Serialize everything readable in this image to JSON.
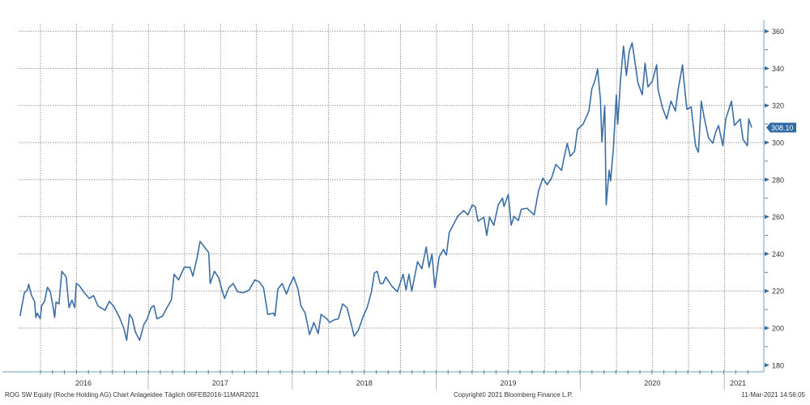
{
  "colors": {
    "line": "#3a6ea5",
    "grid": "#9a9a9a",
    "last_badge": "#2f6aa3",
    "axis": "#6aa0c8"
  },
  "chart_data": {
    "type": "line",
    "title": "",
    "xlabel": "",
    "ylabel": "",
    "ylim": [
      180,
      360
    ],
    "yticks": [
      180,
      200,
      220,
      240,
      260,
      280,
      300,
      320,
      340,
      360
    ],
    "xlim": [
      2016.1,
      2021.19
    ],
    "x_tick_labels": [
      "2016",
      "2017",
      "2018",
      "2019",
      "2020",
      "2021"
    ],
    "grid": true,
    "legend": "none",
    "last_value_label": "308.10",
    "series": [
      {
        "name": "ROG SW Equity",
        "x": [
          2016.11,
          2016.12,
          2016.14,
          2016.16,
          2016.17,
          2016.19,
          2016.21,
          2016.22,
          2016.23,
          2016.25,
          2016.26,
          2016.28,
          2016.3,
          2016.32,
          2016.34,
          2016.35,
          2016.36,
          2016.38,
          2016.4,
          2016.43,
          2016.45,
          2016.47,
          2016.49,
          2016.5,
          2016.52,
          2016.55,
          2016.59,
          2016.62,
          2016.65,
          2016.67,
          2016.7,
          2016.73,
          2016.76,
          2016.8,
          2016.83,
          2016.85,
          2016.87,
          2016.89,
          2016.91,
          2016.94,
          2016.97,
          2016.99,
          2017.02,
          2017.04,
          2017.06,
          2017.1,
          2017.13,
          2017.16,
          2017.18,
          2017.21,
          2017.25,
          2017.29,
          2017.31,
          2017.34,
          2017.36,
          2017.39,
          2017.42,
          2017.43,
          2017.46,
          2017.49,
          2017.51,
          2017.53,
          2017.56,
          2017.59,
          2017.62,
          2017.66,
          2017.7,
          2017.74,
          2017.77,
          2017.8,
          2017.83,
          2017.87,
          2017.88,
          2017.9,
          2017.93,
          2017.96,
          2017.98,
          2018.01,
          2018.04,
          2018.06,
          2018.09,
          2018.12,
          2018.15,
          2018.18,
          2018.2,
          2018.24,
          2018.26,
          2018.29,
          2018.32,
          2018.35,
          2018.38,
          2018.41,
          2018.43,
          2018.46,
          2018.49,
          2018.52,
          2018.55,
          2018.57,
          2018.59,
          2018.61,
          2018.63,
          2018.65,
          2018.69,
          2018.73,
          2018.77,
          2018.79,
          2018.81,
          2018.83,
          2018.87,
          2018.9,
          2018.93,
          2018.95,
          2018.97,
          2018.99,
          2019.02,
          2019.05,
          2019.07,
          2019.09,
          2019.12,
          2019.15,
          2019.19,
          2019.22,
          2019.25,
          2019.27,
          2019.29,
          2019.33,
          2019.35,
          2019.37,
          2019.4,
          2019.43,
          2019.46,
          2019.47,
          2019.5,
          2019.52,
          2019.54,
          2019.57,
          2019.59,
          2019.63,
          2019.68,
          2019.71,
          2019.74,
          2019.77,
          2019.8,
          2019.83,
          2019.87,
          2019.89,
          2019.91,
          2019.93,
          2019.96,
          2019.98,
          2020.02,
          2020.06,
          2020.08,
          2020.1,
          2020.12,
          2020.14,
          2020.15,
          2020.17,
          2020.18,
          2020.2,
          2020.21,
          2020.23,
          2020.25,
          2020.26,
          2020.28,
          2020.3,
          2020.32,
          2020.34,
          2020.36,
          2020.38,
          2020.4,
          2020.43,
          2020.45,
          2020.47,
          2020.5,
          2020.53,
          2020.54,
          2020.57,
          2020.6,
          2020.63,
          2020.66,
          2020.68,
          2020.71,
          2020.72,
          2020.74,
          2020.77,
          2020.8,
          2020.82,
          2020.84,
          2020.86,
          2020.89,
          2020.92,
          2020.94,
          2020.96,
          2020.99,
          2021.01,
          2021.05,
          2021.07,
          2021.11,
          2021.13,
          2021.16,
          2021.17,
          2021.19
        ],
        "y": [
          206.5,
          211,
          219,
          220.5,
          223.6,
          217.5,
          214.4,
          205.7,
          208,
          205,
          212,
          214.4,
          222,
          219.6,
          211,
          205.7,
          214,
          213,
          230.6,
          227.5,
          211,
          215,
          211,
          224,
          223,
          219.6,
          216,
          217.5,
          212,
          211,
          209.6,
          214.4,
          211.8,
          205.7,
          200,
          193.4,
          207.4,
          205,
          198,
          193.4,
          202,
          204.4,
          211,
          212,
          205,
          206.5,
          211,
          215,
          229,
          226,
          232.7,
          232.7,
          228,
          238.4,
          246.7,
          243.7,
          240.6,
          224,
          230.6,
          227,
          221,
          216,
          221.8,
          224,
          219.6,
          219,
          220.5,
          226,
          225,
          221.8,
          207.4,
          208,
          206.5,
          221,
          224,
          218.3,
          222.7,
          227.5,
          221,
          212,
          208,
          196.5,
          203,
          197,
          207.4,
          205,
          203,
          204.4,
          205,
          213,
          211,
          202,
          195.6,
          199,
          205.7,
          211,
          219.6,
          229.7,
          230.6,
          224,
          224,
          227.5,
          222.7,
          219.6,
          229,
          220.5,
          229,
          220,
          235.8,
          231.9,
          243.7,
          232.7,
          240,
          221.8,
          238.4,
          242.4,
          239.3,
          251.5,
          256,
          260.4,
          263.3,
          261,
          266.4,
          265.5,
          257.6,
          259.8,
          250,
          259.8,
          255.4,
          266.4,
          270,
          265.5,
          272,
          255.4,
          260.2,
          258,
          264,
          264.6,
          261,
          274,
          280.8,
          277.3,
          280.8,
          288.2,
          285,
          293,
          299.6,
          292.6,
          295.2,
          307,
          310,
          317,
          328.8,
          333,
          339.7,
          323,
          300.4,
          320,
          266.4,
          285,
          279.4,
          297,
          325.7,
          310,
          334.5,
          352,
          336.2,
          349.3,
          353.7,
          343.2,
          332.3,
          325.8,
          342.8,
          330,
          333,
          341.9,
          328.8,
          318.8,
          312.7,
          322.3,
          317,
          328.8,
          341.9,
          333,
          317.9,
          319.2,
          298.3,
          294.8,
          322.3,
          313.6,
          302.6,
          299.6,
          305.7,
          309.2,
          298.3,
          312.7,
          322.3,
          309.2,
          312.7,
          301.7,
          298.3,
          312.7,
          308.1
        ]
      }
    ]
  },
  "footer": {
    "left": "ROG SW Equity (Roche Holding AG) Chart Anlageidee  Täglich 06FEB2016-11MAR2021",
    "center": "Copyright© 2021 Bloomberg Finance L.P.",
    "right": "11-Mar-2021 14:56:05"
  }
}
